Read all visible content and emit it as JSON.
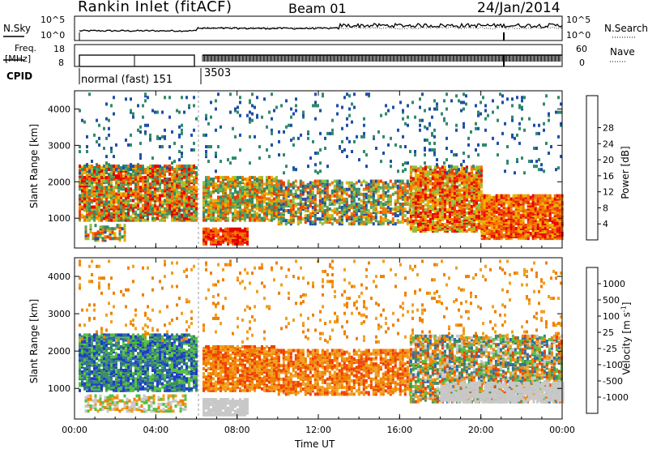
{
  "header": {
    "title": "Rankin Inlet (fitACF)",
    "beam": "Beam 01",
    "date": "24/Jan/2014"
  },
  "noise_panel": {
    "left_label": "N.Sky",
    "right_label": "N.Search",
    "left_ticks": [
      "10^5",
      "10^0"
    ],
    "right_ticks": [
      "10^5",
      "10^0"
    ]
  },
  "freq_panel": {
    "left_label_1": "Freq.",
    "left_label_2": "[MHz]",
    "right_label": "Nave",
    "left_ticks": [
      "18",
      "8"
    ],
    "right_ticks": [
      "60",
      "0"
    ]
  },
  "cpid": {
    "label": "CPID",
    "mode_1": "normal (fast) 151",
    "mode_2": "3503"
  },
  "colors": {
    "power": [
      "#0a14e6",
      "#1e4fa8",
      "#2f8a6a",
      "#58a25a",
      "#8fc040",
      "#f0b000",
      "#f07800",
      "#f03c00",
      "#e60000"
    ],
    "velocity": [
      "#1e3cc8",
      "#2f6aa8",
      "#3c9060",
      "#58c040",
      "#c8c8c8",
      "#f0a020",
      "#f08000",
      "#f04000",
      "#e60000"
    ]
  },
  "chart_data": [
    {
      "type": "heatmap",
      "name": "Power",
      "ylabel": "Slant Range [km]",
      "xlabel": "Time UT",
      "x_ticks": [
        "00:00",
        "04:00",
        "08:00",
        "12:00",
        "16:00",
        "20:00",
        "00:00"
      ],
      "y_ticks": [
        "1000",
        "2000",
        "3000",
        "4000"
      ],
      "ylim": [
        180,
        4500
      ],
      "colorbar_label": "Power [dB]",
      "colorbar_ticks": [
        "4",
        "8",
        "12",
        "16",
        "20",
        "24",
        "28"
      ]
    },
    {
      "type": "heatmap",
      "name": "Velocity",
      "ylabel": "Slant Range [km]",
      "xlabel": "Time UT",
      "x_ticks": [
        "00:00",
        "04:00",
        "08:00",
        "12:00",
        "16:00",
        "20:00",
        "00:00"
      ],
      "y_ticks": [
        "1000",
        "2000",
        "3000",
        "4000"
      ],
      "ylim": [
        180,
        4500
      ],
      "colorbar_label": "Velocity [m s^-1]",
      "colorbar_ticks": [
        "1000",
        "500",
        "100",
        "25",
        "-25",
        "-100",
        "-500",
        "-1000"
      ]
    }
  ]
}
